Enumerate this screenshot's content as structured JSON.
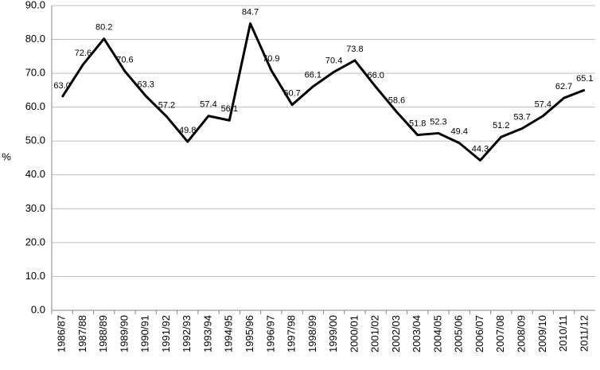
{
  "chart_data": {
    "type": "line",
    "y_label": "%",
    "categories": [
      "1986/87",
      "1987/88",
      "1988/89",
      "1989/90",
      "1990/91",
      "1991/92",
      "1992/93",
      "1993/94",
      "1994/95",
      "1995/96",
      "1996/97",
      "1997/98",
      "1998/99",
      "1999/00",
      "2000/01",
      "2001/02",
      "2002/03",
      "2003/04",
      "2004/05",
      "2005/06",
      "2006/07",
      "2007/08",
      "2008/09",
      "2009/10",
      "2010/11",
      "2011/12"
    ],
    "values": [
      63.0,
      72.6,
      80.2,
      70.6,
      63.3,
      57.2,
      49.8,
      57.4,
      56.1,
      84.7,
      70.9,
      60.7,
      66.1,
      70.4,
      73.8,
      66.0,
      58.6,
      51.8,
      52.3,
      49.4,
      44.3,
      51.2,
      53.7,
      57.4,
      62.7,
      65.1
    ],
    "value_labels": [
      "63.0",
      "72.6",
      "80.2",
      "70.6",
      "63.3",
      "57.2",
      "49.8",
      "57.4",
      "56.1",
      "84.7",
      "70.9",
      "60.7",
      "66.1",
      "70.4",
      "73.8",
      "66.0",
      "58.6",
      "51.8",
      "52.3",
      "49.4",
      "44.3",
      "51.2",
      "53.7",
      "57.4",
      "62.7",
      "65.1"
    ],
    "color": "#000000",
    "ylim": [
      0,
      90
    ],
    "yticks": [
      {
        "value": 0,
        "label": "0.0"
      },
      {
        "value": 10,
        "label": "10.0"
      },
      {
        "value": 20,
        "label": "20.0"
      },
      {
        "value": 30,
        "label": "30.0"
      },
      {
        "value": 40,
        "label": "40.0"
      },
      {
        "value": 50,
        "label": "50.0"
      },
      {
        "value": 60,
        "label": "60.0"
      },
      {
        "value": 70,
        "label": "70.0"
      },
      {
        "value": 80,
        "label": "80.0"
      },
      {
        "value": 90,
        "label": "90.0"
      }
    ],
    "grid": true
  }
}
